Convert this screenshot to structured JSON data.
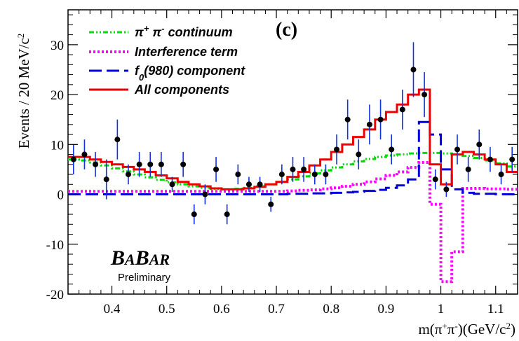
{
  "chart_data": {
    "type": "line",
    "panel_label": "(c)",
    "xlabel_parts": [
      "m(π",
      "+",
      "π",
      "-",
      ")(GeV/c",
      "2",
      ")"
    ],
    "ylabel_parts": [
      "Events / 20 MeV/c",
      "2"
    ],
    "xlim": [
      0.32,
      1.14
    ],
    "ylim": [
      -20,
      37
    ],
    "x_ticks": [
      0.4,
      0.5,
      0.6,
      0.7,
      0.8,
      0.9,
      1.0,
      1.1
    ],
    "x_tick_labels": [
      "0.4",
      "0.5",
      "0.6",
      "0.7",
      "0.8",
      "0.9",
      "1",
      "1.1"
    ],
    "y_ticks": [
      -20,
      -10,
      0,
      10,
      20,
      30
    ],
    "y_tick_labels": [
      "-20",
      "-10",
      "0",
      "10",
      "20",
      "30"
    ],
    "bin_edges": [
      0.32,
      0.34,
      0.36,
      0.38,
      0.4,
      0.42,
      0.44,
      0.46,
      0.48,
      0.5,
      0.52,
      0.54,
      0.56,
      0.58,
      0.6,
      0.62,
      0.64,
      0.66,
      0.68,
      0.7,
      0.72,
      0.74,
      0.76,
      0.78,
      0.8,
      0.82,
      0.84,
      0.86,
      0.88,
      0.9,
      0.92,
      0.94,
      0.96,
      0.98,
      1.0,
      1.02,
      1.04,
      1.06,
      1.08,
      1.1,
      1.12,
      1.14
    ],
    "series": [
      {
        "name": "π+ π- continuum",
        "legend_parts": [
          "π",
          "+",
          " π",
          "-",
          " continuum"
        ],
        "color": "#00dd00",
        "style": "dash-dot-dot",
        "values": [
          7,
          6.8,
          6.4,
          5.8,
          5.2,
          4.6,
          4.0,
          3.4,
          2.9,
          2.4,
          2.0,
          1.6,
          1.3,
          1.1,
          1.0,
          1.1,
          1.3,
          1.6,
          2.0,
          2.5,
          3.0,
          3.6,
          4.2,
          4.8,
          5.4,
          6.0,
          6.6,
          7.1,
          7.5,
          7.8,
          8.0,
          8.2,
          8.3,
          8.3,
          8.2,
          8.0,
          7.7,
          7.3,
          6.8,
          6.2,
          5.6
        ]
      },
      {
        "name": "Interference term",
        "legend_parts": [
          "Interference term"
        ],
        "color": "#ff00ff",
        "style": "dotted",
        "values": [
          0.6,
          0.6,
          0.6,
          0.6,
          0.6,
          0.6,
          0.6,
          0.6,
          0.6,
          0.6,
          0.6,
          0.6,
          0.6,
          0.6,
          0.6,
          0.6,
          0.6,
          0.6,
          0.6,
          0.6,
          0.7,
          0.8,
          0.9,
          1.1,
          1.3,
          1.6,
          2.0,
          2.5,
          3.1,
          3.8,
          4.5,
          5.4,
          6.4,
          -2,
          -17.5,
          -11.5,
          1.2,
          1.2,
          1.1,
          1.1,
          1.0
        ]
      },
      {
        "name": "f0(980) component",
        "legend_parts": [
          "f",
          "0",
          "(980) component"
        ],
        "color": "#0000dd",
        "style": "dashed",
        "values": [
          0,
          0,
          0,
          0,
          0,
          0,
          0,
          0,
          0,
          0,
          0,
          0,
          0,
          0,
          0,
          0,
          0,
          0,
          0,
          0,
          0.1,
          0.1,
          0.2,
          0.2,
          0.3,
          0.4,
          0.5,
          0.7,
          0.9,
          1.3,
          1.8,
          3.0,
          14.5,
          12.0,
          5.0,
          1.0,
          0.3,
          0.1,
          0.1,
          0,
          0
        ]
      },
      {
        "name": "All components",
        "legend_parts": [
          "All components"
        ],
        "color": "#ee0000",
        "style": "solid",
        "values": [
          7.5,
          7.5,
          7.0,
          6.5,
          6.0,
          5.5,
          5.0,
          4.5,
          3.8,
          3.2,
          2.5,
          2.0,
          1.6,
          1.2,
          1.0,
          1.0,
          1.2,
          1.5,
          2.0,
          2.5,
          3.5,
          4.5,
          5.8,
          7.0,
          8.5,
          10.0,
          11.5,
          13.0,
          15.0,
          16.5,
          18.0,
          20.0,
          21.0,
          6.0,
          2.0,
          8.0,
          8.5,
          8.0,
          7.0,
          6.0,
          4.5
        ]
      }
    ],
    "data_points": {
      "x": [
        0.33,
        0.35,
        0.37,
        0.39,
        0.41,
        0.43,
        0.45,
        0.47,
        0.49,
        0.51,
        0.53,
        0.55,
        0.57,
        0.59,
        0.61,
        0.63,
        0.65,
        0.67,
        0.69,
        0.71,
        0.73,
        0.75,
        0.77,
        0.79,
        0.81,
        0.83,
        0.85,
        0.87,
        0.89,
        0.91,
        0.93,
        0.95,
        0.97,
        0.99,
        1.01,
        1.03,
        1.05,
        1.07,
        1.09,
        1.11,
        1.13
      ],
      "y": [
        7,
        8,
        6,
        3,
        11,
        4,
        6,
        6,
        6,
        2,
        6,
        -4,
        0,
        5,
        -4,
        4,
        2,
        2,
        -2,
        4,
        5,
        5,
        4,
        4,
        9,
        15,
        8,
        14,
        15,
        9,
        17,
        25,
        20,
        3,
        1,
        9,
        5,
        10,
        7,
        4,
        7
      ],
      "err": [
        3,
        3,
        2.5,
        4,
        4,
        2,
        2.5,
        2.5,
        2.5,
        1.5,
        2.5,
        2,
        2,
        2.5,
        2,
        2,
        1.5,
        1.5,
        1.5,
        2,
        2.5,
        2.5,
        2,
        2,
        3,
        4,
        3,
        4,
        4,
        3,
        4,
        5.5,
        4.5,
        2,
        1.5,
        3,
        2.5,
        3,
        2.5,
        2,
        2.5
      ],
      "color": "#000000",
      "error_color": "#1133dd"
    }
  },
  "watermark": {
    "big_letter": "B",
    "small_letters": "A",
    "prelim": "Preliminary"
  }
}
